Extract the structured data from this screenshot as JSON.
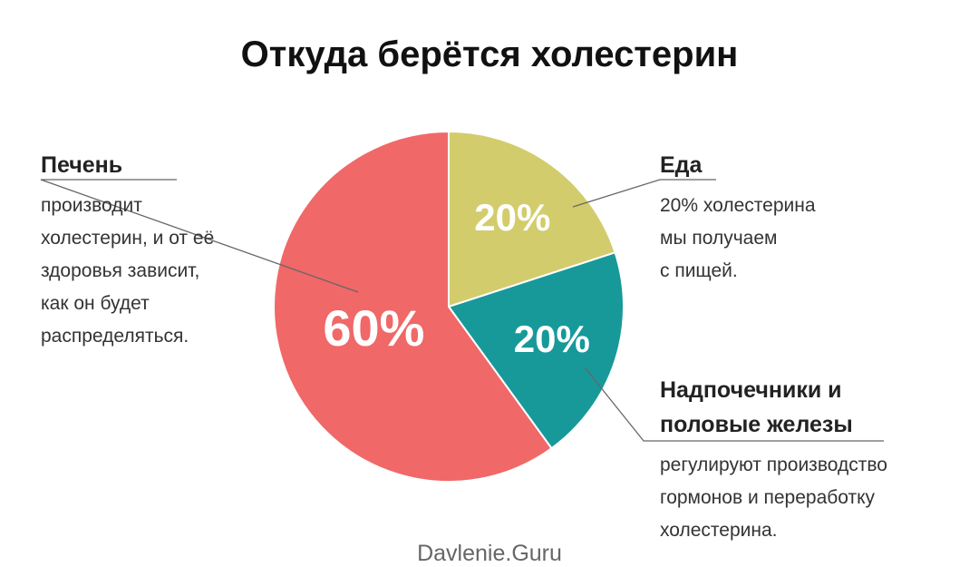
{
  "chart_data": {
    "type": "pie",
    "title": "Откуда берётся холестерин",
    "categories": [
      "Еда",
      "Надпочечники и половые железы",
      "Печень"
    ],
    "values": [
      20,
      20,
      60
    ],
    "value_labels": [
      "20%",
      "20%",
      "60%"
    ],
    "colors": [
      "#d3cc6c",
      "#17999a",
      "#f06868"
    ],
    "notes": [
      [
        "20% холестерина",
        "мы получаем",
        "с пищей."
      ],
      [
        "регулируют производство",
        "гормонов и переработку",
        "холестерина."
      ],
      [
        "производит",
        "холестерин, и от её",
        "здоровья зависит,",
        "как он будет",
        "распределяться."
      ]
    ]
  },
  "watermark": "Davlenie.Guru"
}
